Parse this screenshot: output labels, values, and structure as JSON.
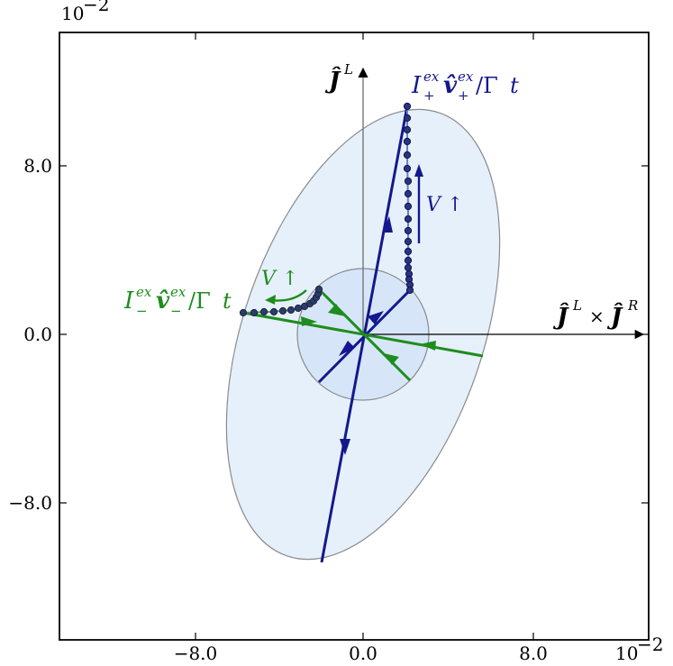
{
  "chart_data": {
    "type": "diagram",
    "x_scale_label": "10^{-2}",
    "y_scale_label": "10^{-2}",
    "x_ticks": [
      {
        "value": -8,
        "label": "−8.0"
      },
      {
        "value": 0,
        "label": "0.0"
      },
      {
        "value": 8,
        "label": "8.0"
      }
    ],
    "y_ticks": [
      {
        "value": 8,
        "label": "8.0"
      },
      {
        "value": 0,
        "label": "0.0"
      },
      {
        "value": -8,
        "label": "−8.0"
      }
    ],
    "axis_labels": {
      "vertical": "Ĵ^L",
      "horizontal": "Ĵ^L × Ĵ^R"
    },
    "annotations": {
      "plus_label": "I₊^ex v̂₊^ex / Γt",
      "minus_label": "I₋^ex v̂₋^ex / Γt",
      "v_up_blue": "V ↑",
      "v_up_green": "V ↑"
    },
    "colors": {
      "blue": "#14188c",
      "green": "#1e8c1e",
      "ellipse_fill": "#e6f0fb",
      "inner_circle_fill": "#d6e6f8"
    }
  }
}
